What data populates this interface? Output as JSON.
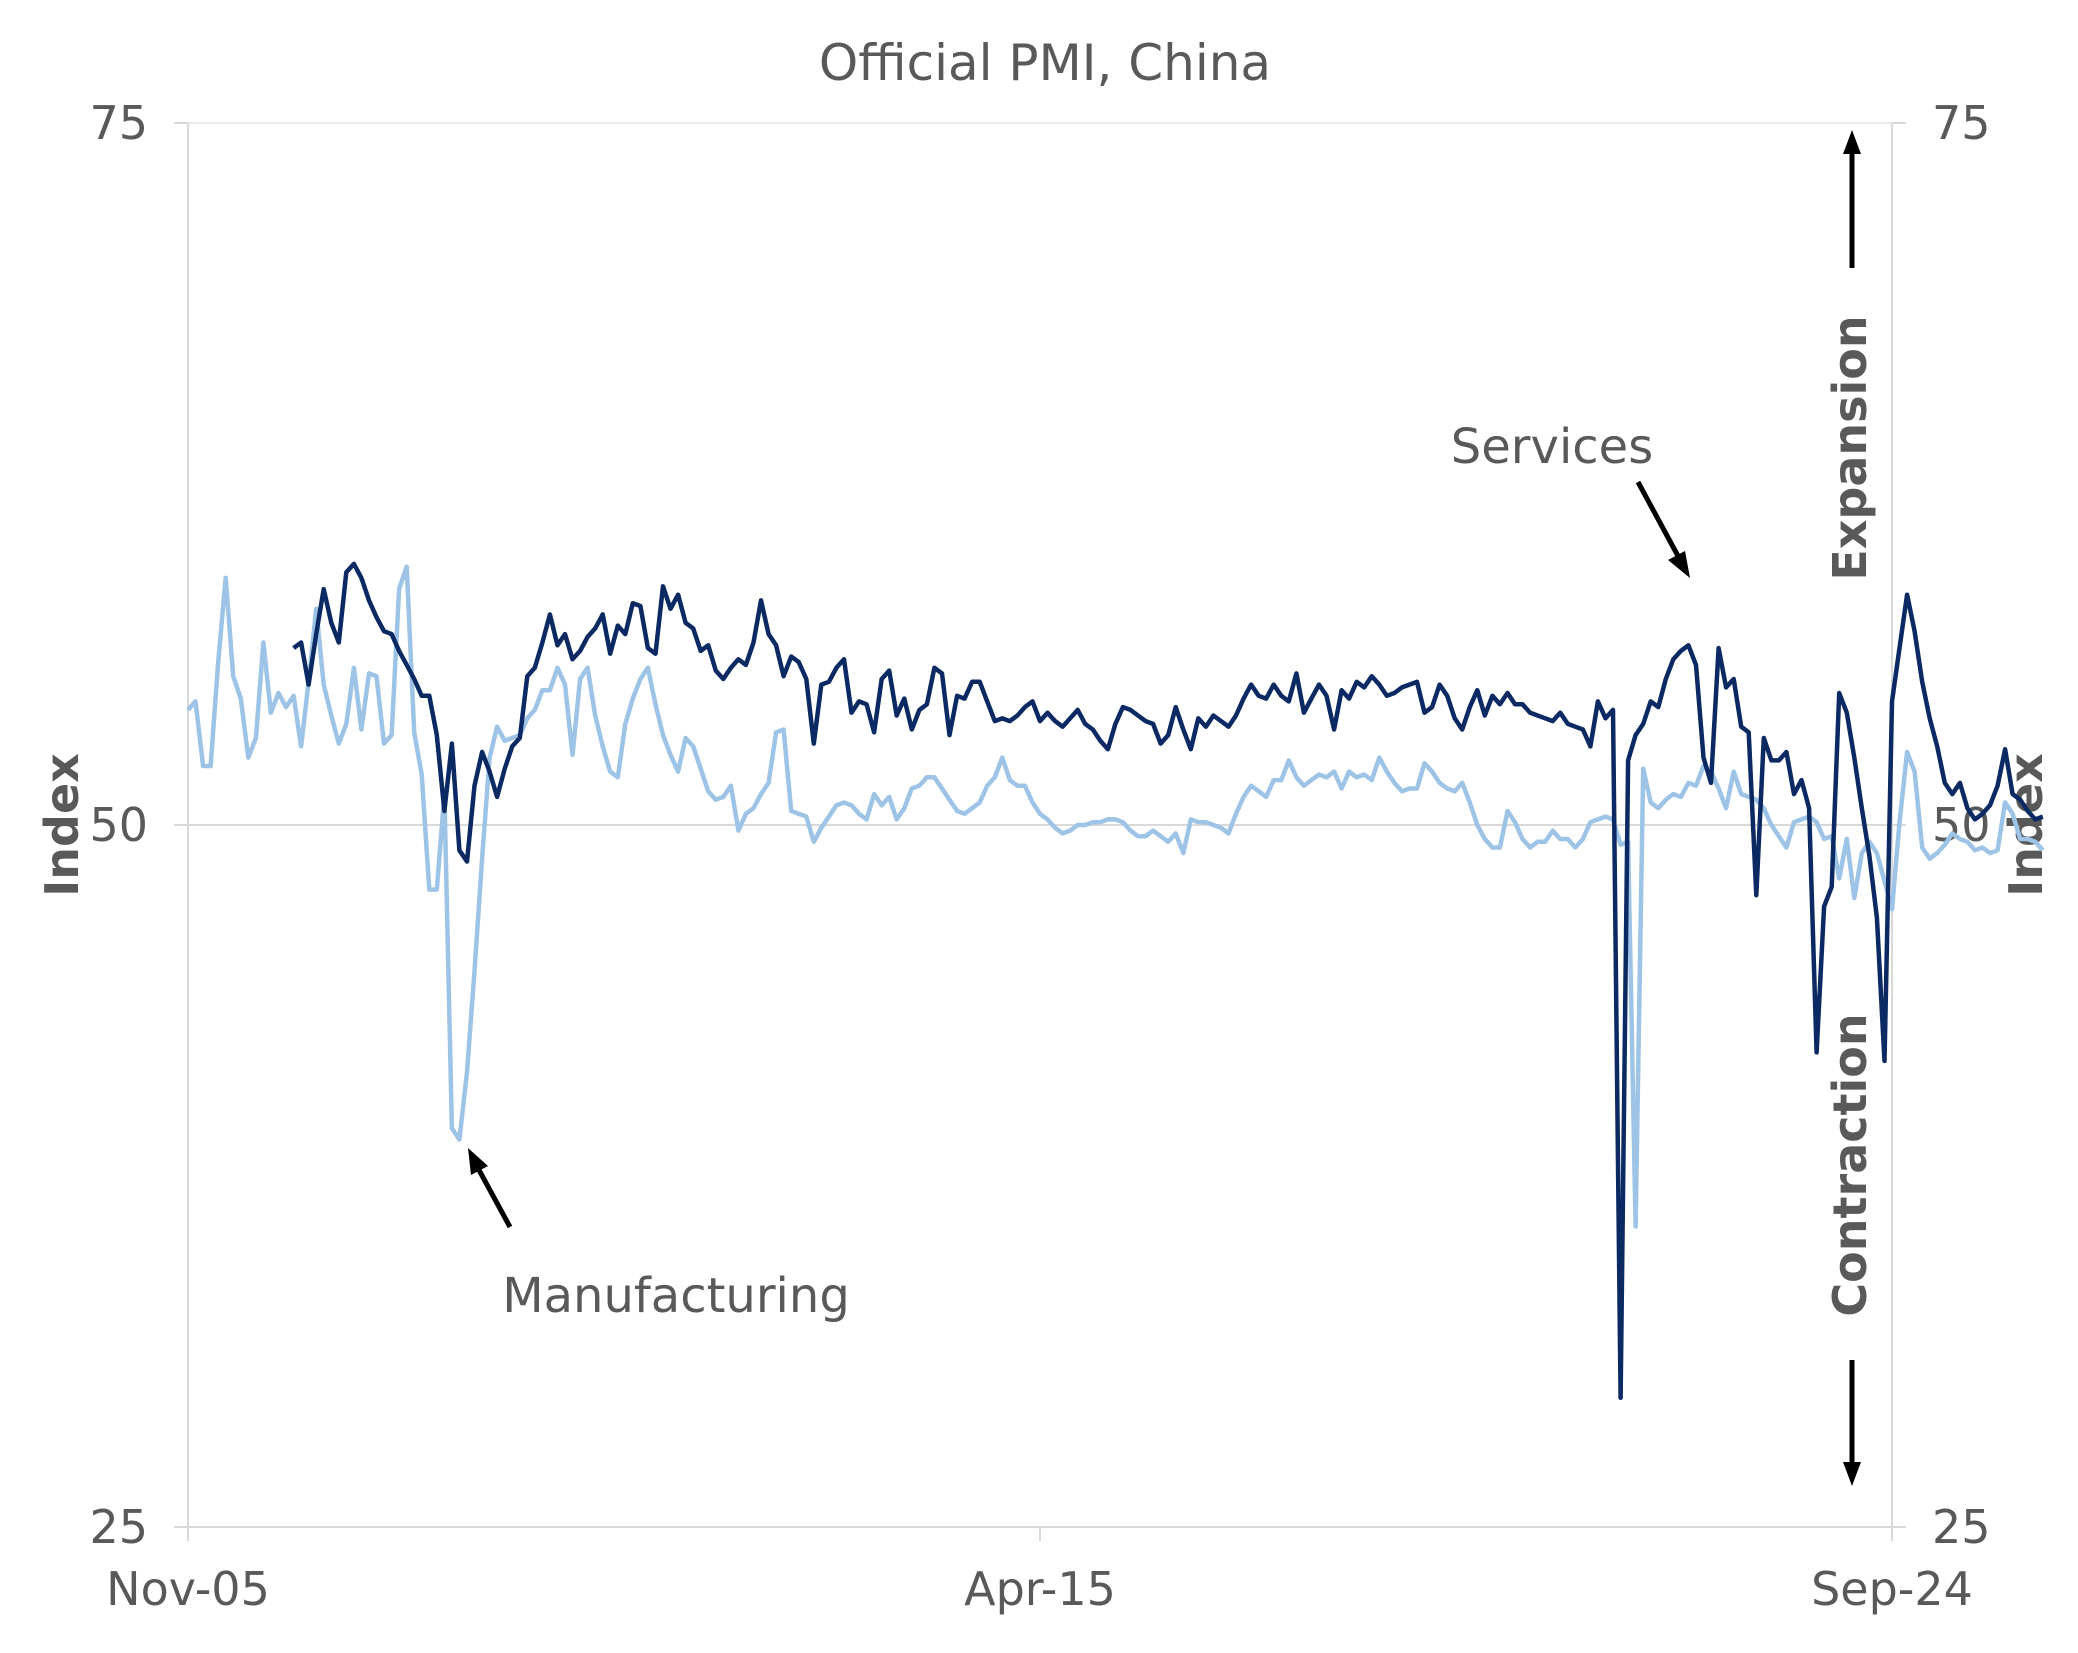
{
  "chart_data": {
    "type": "line",
    "title": "Official PMI, China",
    "ylabel_left": "Index",
    "ylabel_right": "Index",
    "ylim": [
      25,
      75
    ],
    "yticks": [
      25,
      50,
      75
    ],
    "x_range": [
      "2005-11",
      "2024-09"
    ],
    "x_ticks": [
      "Nov-05",
      "Apr-15",
      "Sep-24"
    ],
    "grid": "horizontal at 50",
    "zones": {
      "expansion": "Expansion",
      "contraction": "Contraction"
    },
    "annotations": {
      "services": "Services",
      "manufacturing": "Manufacturing"
    },
    "colors": {
      "manufacturing": "#9dc3e6",
      "services": "#0b2a63",
      "grid": "#d9d9d9",
      "text": "#595959"
    },
    "series": [
      {
        "name": "Manufacturing",
        "start": "2005-11",
        "values": [
          54.1,
          54.4,
          52.1,
          52.1,
          55.8,
          58.8,
          55.3,
          54.5,
          52.4,
          53.1,
          56.5,
          54.0,
          54.7,
          54.2,
          54.6,
          52.8,
          55.1,
          57.7,
          55.0,
          53.9,
          52.9,
          53.6,
          55.6,
          53.4,
          55.4,
          55.3,
          52.9,
          53.2,
          58.4,
          59.2,
          53.3,
          51.8,
          47.7,
          47.7,
          51.1,
          39.2,
          38.8,
          41.2,
          44.8,
          48.8,
          52.4,
          53.5,
          53.0,
          53.1,
          53.2,
          53.8,
          54.1,
          54.8,
          54.8,
          55.6,
          55.0,
          52.5,
          55.2,
          55.6,
          53.9,
          52.8,
          51.9,
          51.7,
          53.6,
          54.5,
          55.2,
          55.6,
          54.3,
          53.2,
          52.5,
          51.9,
          53.1,
          52.8,
          52.0,
          51.2,
          50.9,
          51.0,
          51.4,
          49.8,
          50.4,
          50.6,
          51.1,
          51.5,
          53.3,
          53.4,
          50.5,
          50.4,
          50.3,
          49.4,
          49.9,
          50.3,
          50.7,
          50.8,
          50.7,
          50.4,
          50.2,
          51.1,
          50.7,
          51.0,
          50.2,
          50.6,
          51.3,
          51.4,
          51.7,
          51.7,
          51.3,
          50.9,
          50.5,
          50.4,
          50.6,
          50.8,
          51.4,
          51.7,
          52.4,
          51.6,
          51.4,
          51.4,
          50.8,
          50.4,
          50.2,
          49.9,
          49.7,
          49.8,
          50.0,
          50.0,
          50.1,
          50.1,
          50.2,
          50.2,
          50.1,
          49.8,
          49.6,
          49.6,
          49.8,
          49.6,
          49.4,
          49.7,
          49.0,
          50.2,
          50.1,
          50.1,
          50.0,
          49.9,
          49.7,
          50.4,
          51.0,
          51.4,
          51.2,
          51.0,
          51.6,
          51.6,
          52.3,
          51.7,
          51.4,
          51.6,
          51.8,
          51.7,
          51.9,
          51.3,
          51.9,
          51.7,
          51.8,
          51.6,
          52.4,
          51.9,
          51.5,
          51.2,
          51.3,
          51.3,
          52.2,
          51.9,
          51.5,
          51.3,
          51.2,
          51.5,
          50.8,
          50.0,
          49.5,
          49.2,
          49.2,
          50.5,
          50.1,
          49.5,
          49.2,
          49.4,
          49.4,
          49.8,
          49.5,
          49.5,
          49.2,
          49.5,
          50.1,
          50.2,
          50.3,
          50.2,
          49.3,
          49.4,
          35.7,
          52.0,
          50.8,
          50.6,
          50.9,
          51.1,
          51.0,
          51.5,
          51.4,
          52.1,
          51.9,
          51.3,
          50.6,
          51.9,
          51.1,
          51.0,
          50.9,
          50.6,
          50.0,
          49.6,
          49.2,
          50.1,
          50.2,
          50.3,
          50.1,
          49.5,
          49.6,
          48.1,
          49.5,
          47.4,
          49.0,
          49.4,
          49.0,
          48.0,
          47.0,
          50.1,
          52.6,
          51.9,
          49.2,
          48.8,
          49.0,
          49.3,
          49.7,
          49.5,
          49.4,
          49.1,
          49.2,
          49.0,
          49.1,
          50.8,
          50.4,
          49.5,
          49.5,
          49.4,
          49.1
        ]
      },
      {
        "name": "Services",
        "start": "2007-01",
        "values": [
          56.3,
          56.5,
          55.0,
          56.8,
          58.4,
          57.2,
          56.5,
          59.0,
          59.3,
          58.8,
          58.0,
          57.4,
          56.9,
          56.8,
          56.2,
          55.7,
          55.2,
          54.6,
          54.6,
          53.2,
          50.5,
          52.9,
          49.1,
          48.7,
          51.4,
          52.6,
          51.9,
          51.0,
          52.0,
          52.8,
          53.1,
          55.3,
          55.6,
          56.5,
          57.5,
          56.4,
          56.8,
          55.9,
          56.2,
          56.7,
          57.0,
          57.5,
          56.1,
          57.1,
          56.8,
          57.9,
          57.8,
          56.3,
          56.1,
          58.5,
          57.7,
          58.2,
          57.2,
          57.0,
          56.2,
          56.4,
          55.5,
          55.2,
          55.6,
          55.9,
          55.7,
          56.5,
          58.0,
          56.8,
          56.4,
          55.3,
          56.0,
          55.8,
          55.2,
          52.9,
          55.0,
          55.1,
          55.6,
          55.9,
          54.0,
          54.4,
          54.3,
          53.3,
          55.2,
          55.5,
          53.9,
          54.5,
          53.4,
          54.1,
          54.3,
          55.6,
          55.4,
          53.2,
          54.6,
          54.5,
          55.1,
          55.1,
          54.4,
          53.7,
          53.8,
          53.7,
          53.9,
          54.2,
          54.4,
          53.7,
          54.0,
          53.7,
          53.5,
          53.8,
          54.1,
          53.6,
          53.4,
          53.0,
          52.7,
          53.6,
          54.2,
          54.1,
          53.9,
          53.7,
          53.6,
          52.9,
          53.2,
          54.2,
          53.4,
          52.7,
          53.8,
          53.5,
          53.9,
          53.7,
          53.5,
          53.9,
          54.5,
          55.0,
          54.6,
          54.5,
          55.0,
          54.6,
          54.4,
          55.4,
          54.0,
          54.5,
          55.0,
          54.6,
          53.4,
          54.8,
          54.5,
          55.1,
          54.9,
          55.3,
          55.0,
          54.6,
          54.7,
          54.9,
          55.0,
          55.1,
          54.0,
          54.2,
          55.0,
          54.6,
          53.8,
          53.4,
          54.2,
          54.8,
          53.9,
          54.6,
          54.3,
          54.7,
          54.3,
          54.3,
          54.0,
          53.9,
          53.8,
          53.7,
          54.0,
          53.6,
          53.5,
          53.4,
          52.8,
          54.4,
          53.8,
          54.1,
          29.6,
          52.3,
          53.2,
          53.6,
          54.4,
          54.2,
          55.2,
          55.9,
          56.2,
          56.4,
          55.7,
          52.4,
          51.5,
          56.3,
          54.9,
          55.2,
          53.5,
          53.3,
          47.5,
          53.1,
          52.3,
          52.3,
          52.6,
          51.1,
          51.6,
          50.6,
          41.9,
          47.1,
          47.8,
          54.7,
          54.0,
          52.4,
          50.6,
          48.9,
          46.7,
          41.6,
          54.4,
          56.3,
          58.2,
          56.9,
          55.1,
          53.8,
          52.8,
          51.5,
          51.1,
          51.5,
          50.6,
          50.2,
          50.4,
          50.7,
          51.4,
          52.7,
          51.1,
          50.9,
          50.5,
          50.2,
          50.3
        ]
      }
    ]
  }
}
